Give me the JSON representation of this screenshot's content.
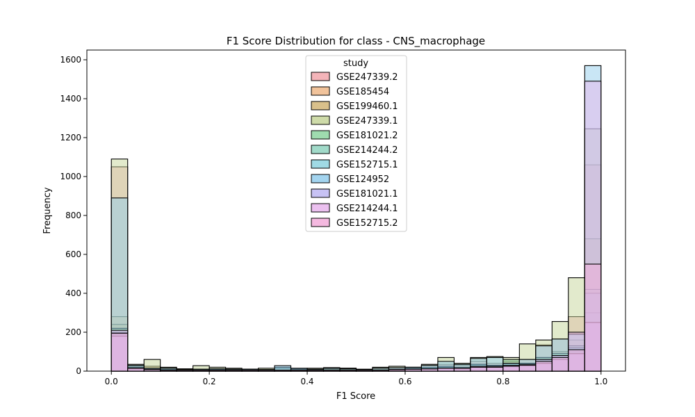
{
  "chart_data": {
    "type": "bar",
    "title": "F1 Score Distribution for class - CNS_macrophage",
    "xlabel": "F1 Score",
    "ylabel": "Frequency",
    "xlim": [
      -0.05,
      1.05
    ],
    "ylim": [
      0,
      1650
    ],
    "xticks": [
      "0.0",
      "0.2",
      "0.4",
      "0.6",
      "0.8",
      "1.0"
    ],
    "yticks": [
      "0",
      "200",
      "400",
      "600",
      "800",
      "1000",
      "1200",
      "1400",
      "1600"
    ],
    "legend_title": "study",
    "legend_position": "top-center",
    "bin_width": 0.0333,
    "bin_starts": [
      0.0,
      0.0333,
      0.0667,
      0.1,
      0.1333,
      0.1667,
      0.2,
      0.2333,
      0.2667,
      0.3,
      0.3333,
      0.3667,
      0.4,
      0.4333,
      0.4667,
      0.5,
      0.5333,
      0.5667,
      0.6,
      0.6333,
      0.6667,
      0.7,
      0.7333,
      0.7667,
      0.8,
      0.8333,
      0.8667,
      0.9,
      0.9333,
      0.9667
    ],
    "series": [
      {
        "name": "GSE247339.2",
        "color": "#f2a7ad",
        "values": [
          1050,
          30,
          15,
          15,
          8,
          10,
          12,
          10,
          10,
          8,
          12,
          10,
          8,
          12,
          15,
          8,
          15,
          18,
          15,
          30,
          35,
          30,
          50,
          40,
          50,
          60,
          135,
          165,
          280,
          1060
        ]
      },
      {
        "name": "GSE185454",
        "color": "#efb98a",
        "values": [
          280,
          25,
          10,
          10,
          5,
          5,
          8,
          5,
          5,
          5,
          5,
          5,
          5,
          8,
          8,
          5,
          8,
          10,
          12,
          15,
          20,
          18,
          30,
          28,
          30,
          40,
          60,
          80,
          110,
          250
        ]
      },
      {
        "name": "GSE199460.1",
        "color": "#d2b577",
        "values": [
          240,
          20,
          25,
          8,
          5,
          8,
          10,
          5,
          5,
          5,
          5,
          5,
          5,
          5,
          5,
          5,
          5,
          8,
          10,
          12,
          20,
          15,
          25,
          20,
          25,
          35,
          70,
          100,
          160,
          680
        ]
      },
      {
        "name": "GSE247339.1",
        "color": "#c5d59a",
        "values": [
          1090,
          35,
          60,
          20,
          12,
          28,
          20,
          15,
          10,
          15,
          15,
          12,
          15,
          18,
          15,
          10,
          20,
          25,
          20,
          35,
          70,
          40,
          70,
          75,
          70,
          140,
          160,
          255,
          480,
          1245
        ]
      },
      {
        "name": "GSE181021.2",
        "color": "#8ed5a1",
        "values": [
          220,
          20,
          10,
          8,
          5,
          5,
          8,
          5,
          5,
          5,
          5,
          5,
          5,
          5,
          5,
          5,
          5,
          8,
          10,
          15,
          20,
          18,
          35,
          30,
          60,
          40,
          70,
          90,
          130,
          420
        ]
      },
      {
        "name": "GSE214244.2",
        "color": "#90d4c0",
        "values": [
          200,
          15,
          8,
          5,
          5,
          5,
          5,
          5,
          5,
          5,
          5,
          5,
          5,
          5,
          5,
          5,
          5,
          8,
          8,
          12,
          15,
          15,
          25,
          20,
          30,
          30,
          50,
          70,
          100,
          300
        ]
      },
      {
        "name": "GSE152715.1",
        "color": "#8fd3e0",
        "values": [
          190,
          15,
          8,
          5,
          5,
          5,
          5,
          5,
          5,
          5,
          20,
          10,
          5,
          5,
          5,
          5,
          5,
          10,
          15,
          20,
          25,
          20,
          35,
          30,
          40,
          40,
          60,
          80,
          120,
          400
        ]
      },
      {
        "name": "GSE124952",
        "color": "#93cdec",
        "values": [
          890,
          30,
          15,
          15,
          8,
          10,
          12,
          10,
          10,
          8,
          28,
          15,
          10,
          15,
          12,
          8,
          15,
          18,
          20,
          30,
          50,
          35,
          65,
          70,
          40,
          60,
          130,
          165,
          190,
          1570
        ]
      },
      {
        "name": "GSE181021.1",
        "color": "#bdb7f2",
        "values": [
          180,
          12,
          8,
          5,
          5,
          5,
          5,
          5,
          5,
          5,
          5,
          5,
          5,
          5,
          5,
          5,
          5,
          5,
          8,
          10,
          15,
          12,
          20,
          20,
          25,
          30,
          40,
          60,
          90,
          250
        ]
      },
      {
        "name": "GSE214244.1",
        "color": "#e7b5ec",
        "values": [
          210,
          15,
          8,
          5,
          5,
          5,
          5,
          5,
          5,
          5,
          5,
          5,
          5,
          5,
          5,
          5,
          5,
          8,
          10,
          12,
          15,
          15,
          25,
          25,
          30,
          35,
          60,
          80,
          200,
          1490
        ]
      },
      {
        "name": "GSE152715.2",
        "color": "#f3addb",
        "values": [
          195,
          15,
          8,
          5,
          5,
          5,
          5,
          5,
          5,
          5,
          5,
          5,
          5,
          5,
          5,
          5,
          5,
          8,
          10,
          12,
          15,
          15,
          20,
          20,
          25,
          30,
          50,
          70,
          110,
          550
        ]
      }
    ]
  }
}
